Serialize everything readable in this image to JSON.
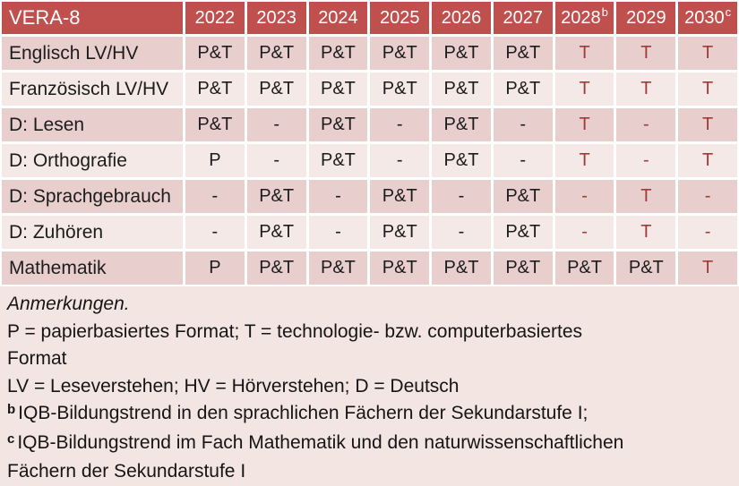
{
  "table": {
    "header": {
      "label": "VERA-8",
      "years": [
        {
          "text": "2022",
          "sup": ""
        },
        {
          "text": "2023",
          "sup": ""
        },
        {
          "text": "2024",
          "sup": ""
        },
        {
          "text": "2025",
          "sup": ""
        },
        {
          "text": "2026",
          "sup": ""
        },
        {
          "text": "2027",
          "sup": ""
        },
        {
          "text": "2028",
          "sup": "b"
        },
        {
          "text": "2029",
          "sup": ""
        },
        {
          "text": "2030",
          "sup": "c"
        }
      ]
    },
    "rows": [
      {
        "label": "Englisch LV/HV",
        "cells": [
          {
            "text": "P&T",
            "red": false
          },
          {
            "text": "P&T",
            "red": false
          },
          {
            "text": "P&T",
            "red": false
          },
          {
            "text": "P&T",
            "red": false
          },
          {
            "text": "P&T",
            "red": false
          },
          {
            "text": "P&T",
            "red": false
          },
          {
            "text": "T",
            "red": true
          },
          {
            "text": "T",
            "red": true
          },
          {
            "text": "T",
            "red": true
          }
        ]
      },
      {
        "label": "Französisch LV/HV",
        "cells": [
          {
            "text": "P&T",
            "red": false
          },
          {
            "text": "P&T",
            "red": false
          },
          {
            "text": "P&T",
            "red": false
          },
          {
            "text": "P&T",
            "red": false
          },
          {
            "text": "P&T",
            "red": false
          },
          {
            "text": "P&T",
            "red": false
          },
          {
            "text": "T",
            "red": true
          },
          {
            "text": "T",
            "red": true
          },
          {
            "text": "T",
            "red": true
          }
        ]
      },
      {
        "label": "D: Lesen",
        "cells": [
          {
            "text": "P&T",
            "red": false
          },
          {
            "text": "-",
            "red": false
          },
          {
            "text": "P&T",
            "red": false
          },
          {
            "text": "-",
            "red": false
          },
          {
            "text": "P&T",
            "red": false
          },
          {
            "text": "-",
            "red": false
          },
          {
            "text": "T",
            "red": true
          },
          {
            "text": "-",
            "red": true
          },
          {
            "text": "T",
            "red": true
          }
        ]
      },
      {
        "label": "D: Orthografie",
        "cells": [
          {
            "text": "P",
            "red": false
          },
          {
            "text": "-",
            "red": false
          },
          {
            "text": "P&T",
            "red": false
          },
          {
            "text": "-",
            "red": false
          },
          {
            "text": "P&T",
            "red": false
          },
          {
            "text": "-",
            "red": false
          },
          {
            "text": "T",
            "red": true
          },
          {
            "text": "-",
            "red": true
          },
          {
            "text": "T",
            "red": true
          }
        ]
      },
      {
        "label": "D: Sprachgebrauch",
        "cells": [
          {
            "text": "-",
            "red": false
          },
          {
            "text": "P&T",
            "red": false
          },
          {
            "text": "-",
            "red": false
          },
          {
            "text": "P&T",
            "red": false
          },
          {
            "text": "-",
            "red": false
          },
          {
            "text": "P&T",
            "red": false
          },
          {
            "text": "-",
            "red": true
          },
          {
            "text": "T",
            "red": true
          },
          {
            "text": "-",
            "red": true
          }
        ]
      },
      {
        "label": "D: Zuhören",
        "cells": [
          {
            "text": "-",
            "red": false
          },
          {
            "text": "P&T",
            "red": false
          },
          {
            "text": "-",
            "red": false
          },
          {
            "text": "P&T",
            "red": false
          },
          {
            "text": "-",
            "red": false
          },
          {
            "text": "P&T",
            "red": false
          },
          {
            "text": "-",
            "red": true
          },
          {
            "text": "T",
            "red": true
          },
          {
            "text": "-",
            "red": true
          }
        ]
      },
      {
        "label": "Mathematik",
        "cells": [
          {
            "text": "P",
            "red": false
          },
          {
            "text": "P&T",
            "red": false
          },
          {
            "text": "P&T",
            "red": false
          },
          {
            "text": "P&T",
            "red": false
          },
          {
            "text": "P&T",
            "red": false
          },
          {
            "text": "P&T",
            "red": false
          },
          {
            "text": "P&T",
            "red": false
          },
          {
            "text": "P&T",
            "red": false
          },
          {
            "text": "T",
            "red": true
          }
        ]
      }
    ]
  },
  "notes": {
    "title": "Anmerkungen.",
    "lines": [
      {
        "sup": "",
        "text": "P = papierbasiertes Format; T = technologie- bzw. computerbasiertes Format"
      },
      {
        "sup": "",
        "text": "LV = Leseverstehen; HV = Hörverstehen; D = Deutsch"
      },
      {
        "sup": "b",
        "text": "IQB-Bildungstrend in den sprachlichen Fächern der Sekundarstufe I;"
      },
      {
        "sup": "c",
        "text": "IQB-Bildungstrend im Fach Mathematik und den naturwissenschaftlichen Fächern der Sekundarstufe I"
      }
    ]
  },
  "colors": {
    "header_bg": "#C0504D",
    "header_text": "#FFFFFF",
    "band_dark": "#E8CFCD",
    "band_light": "#F4E9E7",
    "notes_bg": "#F2E5E2",
    "text": "#1C1C1C",
    "red_text": "#9E3B39",
    "grid": "#FFFFFF"
  }
}
